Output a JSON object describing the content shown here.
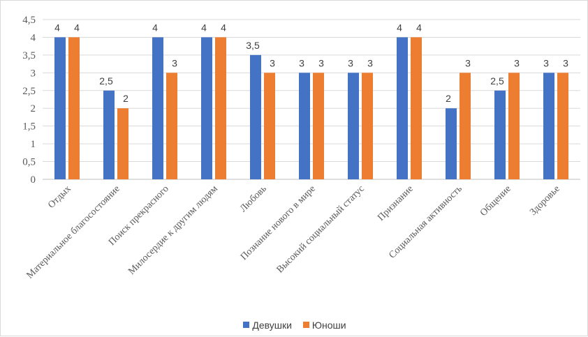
{
  "chart_data": {
    "type": "bar",
    "categories": [
      "Отдых",
      "Материальное благосостояние",
      "Поиск прекрасного",
      "Милосердие к другим людям",
      "Любовь",
      "Познание нового в мире",
      "Высокий социальный статус",
      "Признание",
      "Социальная активность",
      "Общение",
      "Здоровье"
    ],
    "series": [
      {
        "name": "Девушки",
        "color": "#4472C4",
        "values": [
          4,
          2.5,
          4,
          4,
          3.5,
          3,
          3,
          4,
          2,
          2.5,
          3
        ]
      },
      {
        "name": "Юноши",
        "color": "#ED7D31",
        "values": [
          4,
          2,
          3,
          4,
          3,
          3,
          3,
          4,
          3,
          3,
          3
        ]
      }
    ],
    "ylim": [
      0,
      4.5
    ],
    "yticks": [
      "0",
      "0,5",
      "1",
      "1,5",
      "2",
      "2,5",
      "3",
      "3,5",
      "4",
      "4,5"
    ],
    "grid": true,
    "legend_position": "bottom",
    "data_labels": true,
    "decimal_separator": ","
  }
}
